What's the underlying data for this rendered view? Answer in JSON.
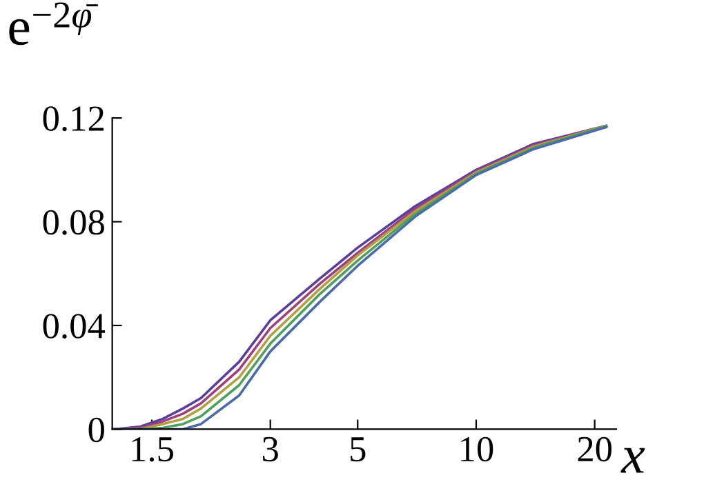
{
  "chart_data": {
    "type": "line",
    "ylabel": "e$^{−2φ̄}$",
    "xlabel": "x",
    "log": "x",
    "x": [
      1.2,
      1.4,
      1.6,
      1.8,
      2,
      2.5,
      3,
      4,
      5,
      7,
      10,
      14,
      21.4
    ],
    "series": [
      {
        "color": "#5a3d9e",
        "values": [
          0,
          0.001,
          0.004,
          0.008,
          0.012,
          0.026,
          0.042,
          0.058,
          0.07,
          0.086,
          0.1,
          0.11,
          0.117
        ]
      },
      {
        "color": "#a0407a",
        "values": [
          0,
          0.0005,
          0.003,
          0.006,
          0.01,
          0.023,
          0.039,
          0.056,
          0.068,
          0.085,
          0.0995,
          0.1095,
          0.117
        ]
      },
      {
        "color": "#b0a040",
        "values": [
          0,
          0,
          0.002,
          0.004,
          0.008,
          0.02,
          0.036,
          0.054,
          0.067,
          0.084,
          0.099,
          0.109,
          0.117
        ]
      },
      {
        "color": "#4fa060",
        "values": [
          0,
          0,
          0.0005,
          0.002,
          0.005,
          0.017,
          0.033,
          0.052,
          0.065,
          0.083,
          0.0985,
          0.1085,
          0.1168
        ]
      },
      {
        "color": "#4a6aa8",
        "values": [
          0,
          0,
          0,
          0,
          0.002,
          0.013,
          0.03,
          0.049,
          0.063,
          0.082,
          0.098,
          0.108,
          0.1165
        ]
      }
    ],
    "xlim": [
      1.19,
      22.7
    ],
    "ylim": [
      0,
      0.12
    ],
    "xticks": [
      1.5,
      3,
      5,
      10,
      20
    ],
    "yticks": [
      0,
      0.04,
      0.08,
      0.12
    ],
    "grid": false,
    "legend": false,
    "marker": "none",
    "line_style": "solid"
  }
}
